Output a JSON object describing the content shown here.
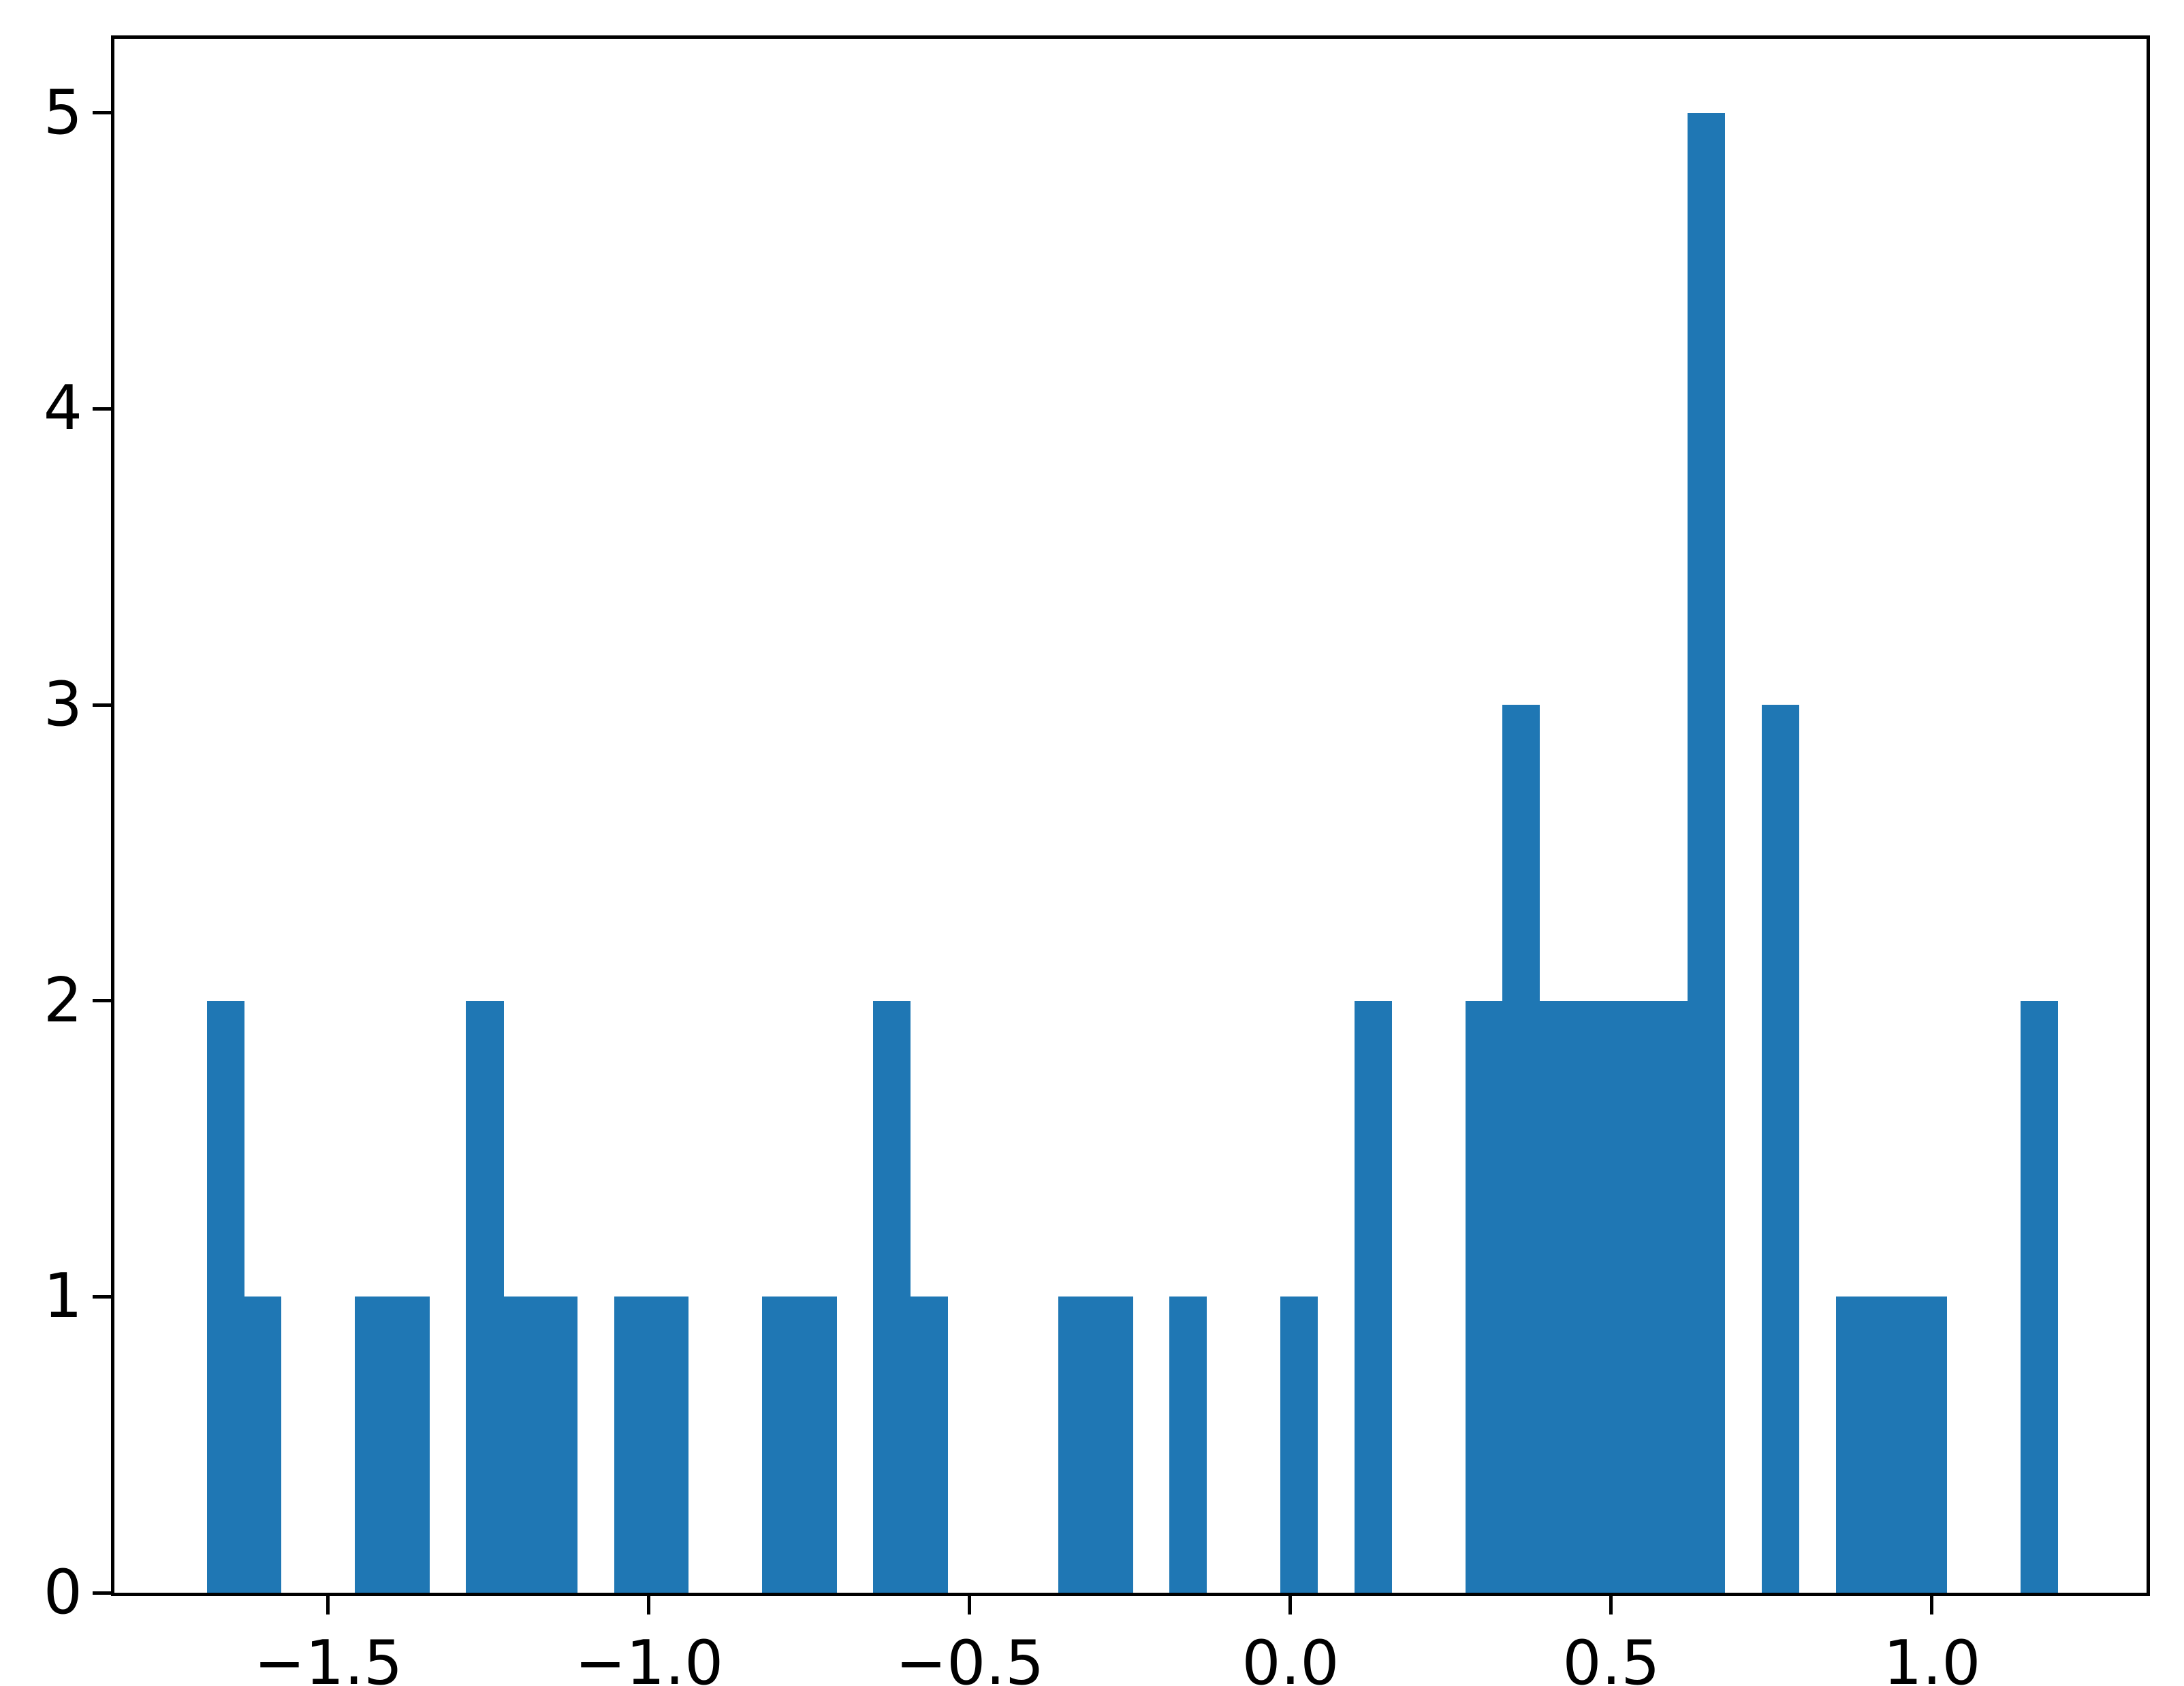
{
  "chart_data": {
    "type": "bar",
    "subtype": "histogram",
    "title": "",
    "xlabel": "",
    "ylabel": "",
    "bar_color": "#1f77b4",
    "background_color": "#ffffff",
    "axis_color": "#000000",
    "grid": false,
    "legend_position": "none",
    "xlim": [
      -1.8333,
      1.3344
    ],
    "ylim": [
      0,
      5.25
    ],
    "x_tick_values": [
      -1.5,
      -1.0,
      -0.5,
      0.0,
      0.5,
      1.0
    ],
    "x_tick_labels": [
      "−1.5",
      "−1.0",
      "−0.5",
      "0.0",
      "0.5",
      "1.0"
    ],
    "y_tick_values": [
      0,
      1,
      2,
      3,
      4,
      5
    ],
    "y_tick_labels": [
      "0",
      "1",
      "2",
      "3",
      "4",
      "5"
    ],
    "bin_start": -1.689,
    "bin_width": 0.0577,
    "bin_count": 50,
    "counts": [
      2,
      1,
      0,
      0,
      1,
      1,
      0,
      2,
      1,
      1,
      0,
      1,
      1,
      0,
      0,
      1,
      1,
      0,
      2,
      1,
      0,
      0,
      0,
      1,
      1,
      0,
      1,
      0,
      0,
      1,
      0,
      2,
      0,
      0,
      2,
      3,
      2,
      2,
      2,
      2,
      5,
      0,
      3,
      0,
      1,
      1,
      1,
      0,
      0,
      2
    ]
  }
}
